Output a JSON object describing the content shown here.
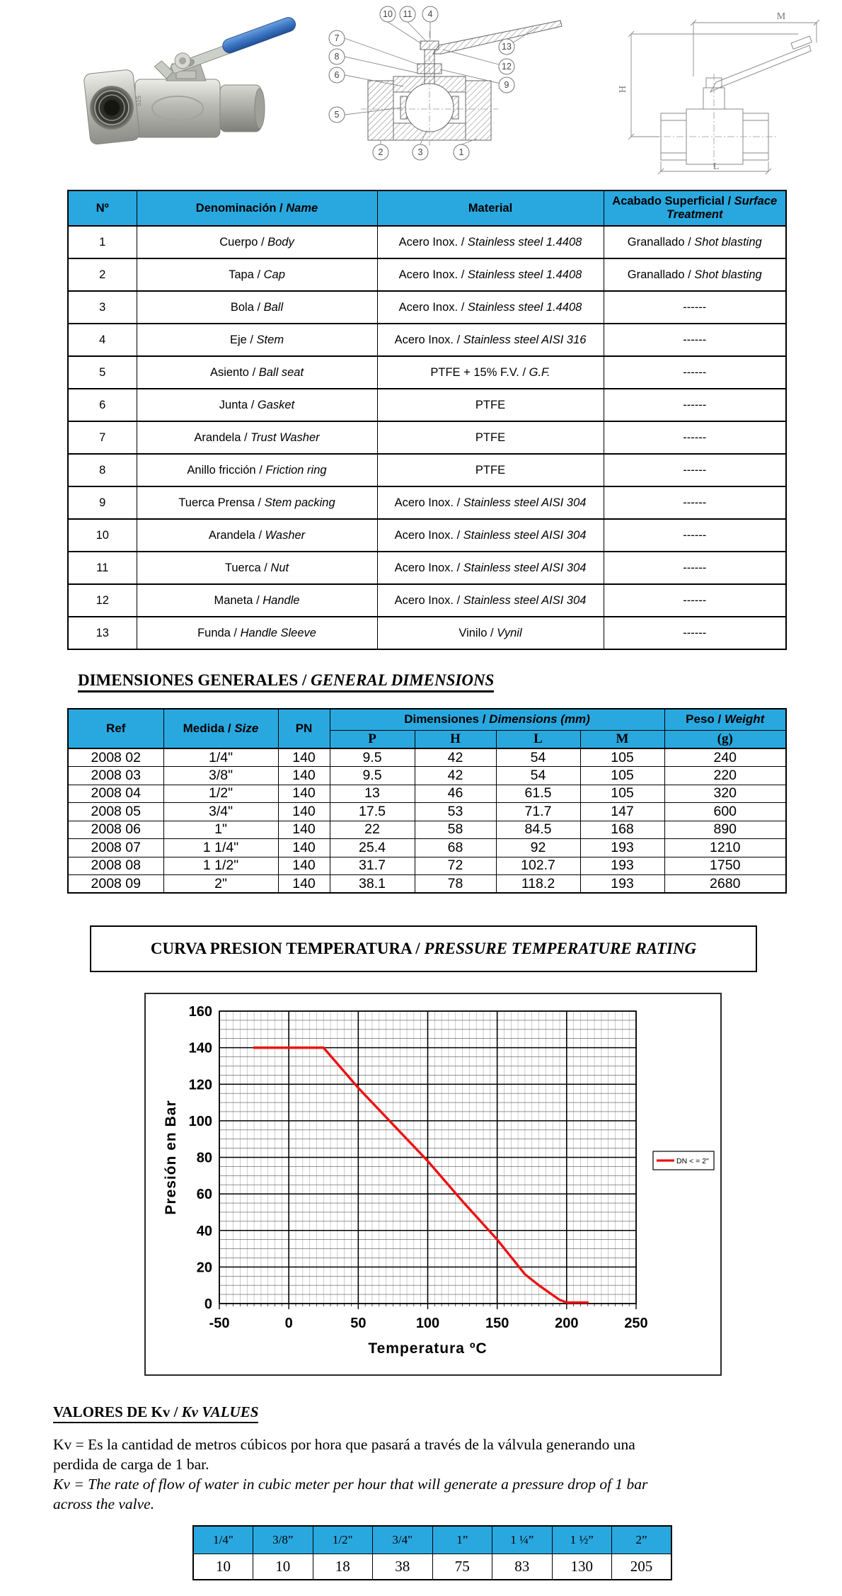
{
  "colors": {
    "table_header_blue": "#29a8e0",
    "curve_red": "#ee1111",
    "handle_blue": "#3a76c4",
    "border": "#000000"
  },
  "images": {
    "photo": {
      "engraving": "515"
    },
    "diagram": {
      "callouts": [
        "10",
        "11",
        "4",
        "7",
        "8",
        "6",
        "5",
        "2",
        "3",
        "1",
        "13",
        "12",
        "9"
      ]
    },
    "dimension_drawing": {
      "labels": {
        "m": "M",
        "h": "H",
        "l": "L"
      }
    }
  },
  "parts_table": {
    "headers": {
      "num": "Nº",
      "name": "Denominación / Name",
      "material": "Material",
      "finish": "Acabado Superficial / Surface Treatment"
    },
    "rows": [
      {
        "num": "1",
        "name": "Cuerpo / Body",
        "material": "Acero Inox.  /  Stainless steel 1.4408",
        "finish": "Granallado / Shot blasting"
      },
      {
        "num": "2",
        "name": "Tapa / Cap",
        "material": "Acero Inox.  /  Stainless steel 1.4408",
        "finish": "Granallado / Shot blasting"
      },
      {
        "num": "3",
        "name": "Bola / Ball",
        "material": "Acero Inox.  /  Stainless steel 1.4408",
        "finish": "------"
      },
      {
        "num": "4",
        "name": "Eje / Stem",
        "material": "Acero Inox. / Stainless steel AISI 316",
        "finish": "------"
      },
      {
        "num": "5",
        "name": "Asiento / Ball seat",
        "material": "PTFE + 15% F.V. / G.F.",
        "finish": "------"
      },
      {
        "num": "6",
        "name": "Junta / Gasket",
        "material": "PTFE",
        "finish": "------"
      },
      {
        "num": "7",
        "name": "Arandela / Trust Washer",
        "material": "PTFE",
        "finish": "------"
      },
      {
        "num": "8",
        "name": "Anillo fricción  /  Friction ring",
        "material": "PTFE",
        "finish": "------"
      },
      {
        "num": "9",
        "name": "Tuerca Prensa / Stem packing",
        "material": "Acero Inox. / Stainless steel AISI 304",
        "finish": "------"
      },
      {
        "num": "10",
        "name": "Arandela /  Washer",
        "material": "Acero Inox. / Stainless steel AISI 304",
        "finish": "------"
      },
      {
        "num": "11",
        "name": "Tuerca / Nut",
        "material": "Acero Inox. / Stainless steel AISI 304",
        "finish": "------"
      },
      {
        "num": "12",
        "name": "Maneta / Handle",
        "material": "Acero Inox. / Stainless steel AISI 304",
        "finish": "------"
      },
      {
        "num": "13",
        "name": "Funda / Handle Sleeve",
        "material": "Vinilo / Vynil",
        "finish": "------"
      }
    ]
  },
  "dimensions_section": {
    "heading": "DIMENSIONES GENERALES / GENERAL DIMENSIONS",
    "table": {
      "headers": {
        "ref": "Ref",
        "size": "Medida / Size",
        "pn": "PN",
        "dims": "Dimensiones / Dimensions (mm)",
        "p": "P",
        "h": "H",
        "l": "L",
        "m": "M",
        "weight_line1": "Peso / Weight",
        "weight_line2": "(g)"
      },
      "rows": [
        {
          "ref": "2008 02",
          "size": "1/4\"",
          "pn": "140",
          "p": "9.5",
          "h": "42",
          "l": "54",
          "m": "105",
          "weight": "240"
        },
        {
          "ref": "2008 03",
          "size": "3/8\"",
          "pn": "140",
          "p": "9.5",
          "h": "42",
          "l": "54",
          "m": "105",
          "weight": "220"
        },
        {
          "ref": "2008 04",
          "size": "1/2\"",
          "pn": "140",
          "p": "13",
          "h": "46",
          "l": "61.5",
          "m": "105",
          "weight": "320"
        },
        {
          "ref": "2008 05",
          "size": "3/4\"",
          "pn": "140",
          "p": "17.5",
          "h": "53",
          "l": "71.7",
          "m": "147",
          "weight": "600"
        },
        {
          "ref": "2008 06",
          "size": "1\"",
          "pn": "140",
          "p": "22",
          "h": "58",
          "l": "84.5",
          "m": "168",
          "weight": "890"
        },
        {
          "ref": "2008 07",
          "size": "1 1/4\"",
          "pn": "140",
          "p": "25.4",
          "h": "68",
          "l": "92",
          "m": "193",
          "weight": "1210"
        },
        {
          "ref": "2008 08",
          "size": "1 1/2\"",
          "pn": "140",
          "p": "31.7",
          "h": "72",
          "l": "102.7",
          "m": "193",
          "weight": "1750"
        },
        {
          "ref": "2008 09",
          "size": "2\"",
          "pn": "140",
          "p": "38.1",
          "h": "78",
          "l": "118.2",
          "m": "193",
          "weight": "2680"
        }
      ]
    }
  },
  "chart_section": {
    "title": "CURVA PRESION TEMPERATURA / PRESSURE TEMPERATURE RATING"
  },
  "chart_data": {
    "type": "line",
    "title": "",
    "xlabel": "Temperatura ºC",
    "ylabel": "Presión en Bar",
    "xlim": [
      -50,
      250
    ],
    "ylim": [
      0,
      160
    ],
    "x_ticks": [
      -50,
      0,
      50,
      100,
      150,
      200,
      250
    ],
    "y_ticks": [
      0,
      20,
      40,
      60,
      80,
      100,
      120,
      140,
      160
    ],
    "x_minor_step": 5,
    "y_minor_step": 5,
    "grid": true,
    "legend_position": "right",
    "series": [
      {
        "name": "DN < = 2\"",
        "color": "#ee1111",
        "points": [
          [
            -25,
            140
          ],
          [
            25,
            140
          ],
          [
            50,
            118
          ],
          [
            75,
            98
          ],
          [
            100,
            78
          ],
          [
            125,
            56
          ],
          [
            150,
            35
          ],
          [
            170,
            16
          ],
          [
            180,
            10
          ],
          [
            195,
            2
          ],
          [
            200,
            0.6
          ],
          [
            215,
            0.6
          ]
        ]
      }
    ]
  },
  "kv_section": {
    "heading": "VALORES DE Kv /  Kv VALUES",
    "lines_es": [
      "Kv = Es la cantidad de metros cúbicos por hora que pasará a través de la válvula generando una",
      "perdida de carga de 1 bar."
    ],
    "lines_en": [
      "Kv = The rate of flow of water in cubic meter per hour that will generate a pressure drop of 1 bar",
      "across the valve."
    ],
    "table": {
      "sizes": [
        "1/4\"",
        "3/8”",
        "1/2\"",
        "3/4\"",
        "1”",
        "1 ¼”",
        "1 ½”",
        "2”"
      ],
      "values": [
        "10",
        "10",
        "18",
        "38",
        "75",
        "83",
        "130",
        "205"
      ]
    }
  }
}
